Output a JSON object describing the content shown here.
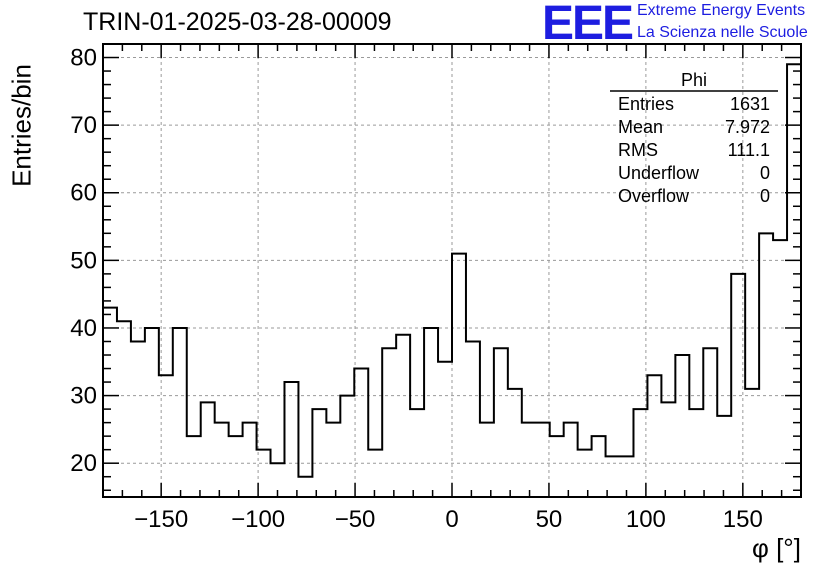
{
  "chart_data": {
    "type": "bar",
    "style": "step-histogram",
    "title": "TRIN-01-2025-03-28-00009",
    "xlabel": "φ [°]",
    "ylabel": "Entries/bin",
    "xlim": [
      -180,
      180
    ],
    "ylim": [
      15,
      82
    ],
    "grid": true,
    "bin_width": 7.2,
    "x_ticks": [
      -150,
      -100,
      -50,
      0,
      50,
      100,
      150
    ],
    "x_tick_labels": [
      "−150",
      "−100",
      "−50",
      "0",
      "50",
      "100",
      "150"
    ],
    "y_ticks": [
      20,
      30,
      40,
      50,
      60,
      70,
      80
    ],
    "y_tick_labels": [
      "20",
      "30",
      "40",
      "50",
      "60",
      "70",
      "80"
    ],
    "values": [
      43,
      41,
      38,
      40,
      33,
      40,
      24,
      29,
      26,
      24,
      26,
      22,
      20,
      32,
      18,
      28,
      26,
      30,
      34,
      22,
      37,
      39,
      28,
      40,
      35,
      51,
      38,
      26,
      37,
      31,
      26,
      26,
      24,
      26,
      22,
      24,
      21,
      21,
      28,
      33,
      29,
      36,
      28,
      37,
      27,
      48,
      31,
      54,
      53,
      79
    ],
    "stats": {
      "name": "Phi",
      "rows": [
        {
          "label": "Entries",
          "value": "1631"
        },
        {
          "label": "Mean",
          "value": "7.972"
        },
        {
          "label": "RMS",
          "value": "111.1"
        },
        {
          "label": "Underflow",
          "value": "0"
        },
        {
          "label": "Overflow",
          "value": "0"
        }
      ]
    }
  },
  "logo": {
    "mark": "EEE",
    "line1": "Extreme Energy Events",
    "line2": "La Scienza nelle Scuole",
    "color": "#1d1de0"
  }
}
